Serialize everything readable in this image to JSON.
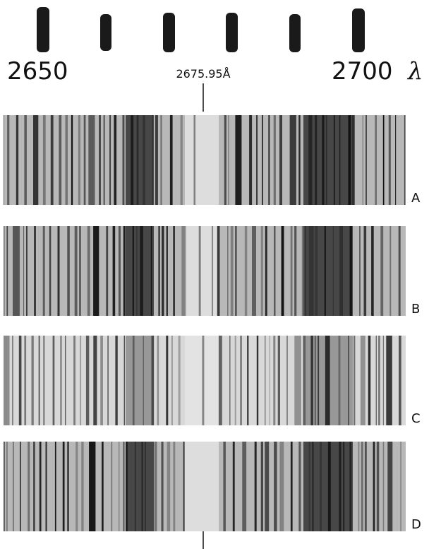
{
  "scale": {
    "left_label": "2650",
    "right_label": "2700",
    "symbol": "λ"
  },
  "marker": "2675.95Å",
  "spectra": [
    {
      "label": "A"
    },
    {
      "label": "B"
    },
    {
      "label": "C"
    },
    {
      "label": "D"
    }
  ]
}
